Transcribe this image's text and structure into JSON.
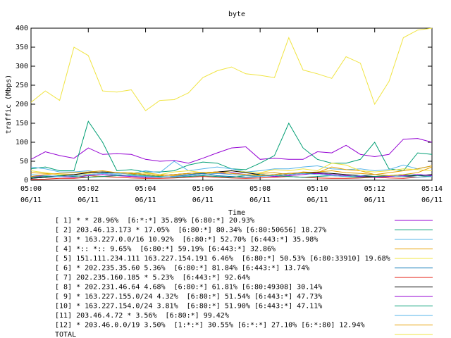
{
  "chart_data": {
    "type": "line",
    "title": "byte",
    "xlabel": "Time",
    "ylabel": "traffic (Mbps)",
    "x": [
      "05:00:00",
      "05:00:30",
      "05:01:00",
      "05:01:30",
      "05:02:00",
      "05:02:30",
      "05:03:00",
      "05:03:30",
      "05:04:00",
      "05:04:30",
      "05:05:00",
      "05:05:30",
      "05:06:00",
      "05:06:30",
      "05:07:00",
      "05:07:30",
      "05:08:00",
      "05:08:30",
      "05:09:00",
      "05:09:30",
      "05:10:00",
      "05:10:30",
      "05:11:00",
      "05:11:30",
      "05:12:00",
      "05:12:30",
      "05:13:00",
      "05:13:30",
      "05:14:00"
    ],
    "xlim": [
      "05:00:00",
      "05:14:00"
    ],
    "xticks": [
      {
        "value": "05:00:00",
        "label": "05:00",
        "date": "06/11"
      },
      {
        "value": "05:02:00",
        "label": "05:02",
        "date": "06/11"
      },
      {
        "value": "05:04:00",
        "label": "05:04",
        "date": "06/11"
      },
      {
        "value": "05:06:00",
        "label": "05:06",
        "date": "06/11"
      },
      {
        "value": "05:08:00",
        "label": "05:08",
        "date": "06/11"
      },
      {
        "value": "05:10:00",
        "label": "05:10",
        "date": "06/11"
      },
      {
        "value": "05:12:00",
        "label": "05:12",
        "date": "06/11"
      },
      {
        "value": "05:14:00",
        "label": "05:14",
        "date": "06/11"
      }
    ],
    "ylim": [
      0,
      400
    ],
    "yticks": [
      0,
      50,
      100,
      150,
      200,
      250,
      300,
      350,
      400
    ],
    "series": [
      {
        "name": "[ 1] * * 28.96%  [6:*:*] 35.89% [6:80:*] 20.93%",
        "color": "#9400d3",
        "values": [
          55,
          75,
          65,
          58,
          85,
          68,
          70,
          68,
          55,
          50,
          52,
          45,
          58,
          72,
          85,
          88,
          55,
          58,
          55,
          55,
          75,
          72,
          92,
          68,
          62,
          68,
          108,
          110,
          100
        ]
      },
      {
        "name": "[ 2] 203.46.13.173 * 17.05%  [6:80:*] 80.34% [6:80:50656] 18.27%",
        "color": "#009e73",
        "values": [
          30,
          35,
          25,
          25,
          155,
          100,
          25,
          28,
          22,
          22,
          25,
          40,
          48,
          45,
          30,
          28,
          45,
          65,
          150,
          85,
          55,
          45,
          45,
          55,
          100,
          30,
          25,
          72,
          68
        ]
      },
      {
        "name": "[ 3] * 163.227.0.0/16 10.92%  [6:80:*] 52.70% [6:443:*] 35.98%",
        "color": "#56b4e9",
        "values": [
          35,
          30,
          22,
          22,
          25,
          20,
          18,
          18,
          25,
          20,
          50,
          25,
          30,
          35,
          30,
          22,
          25,
          30,
          30,
          35,
          38,
          30,
          28,
          30,
          25,
          28,
          40,
          30,
          38
        ]
      },
      {
        "name": "[ 4] *:: *:: 9.65%  [6:80:*] 59.19% [6:443:*] 32.86%",
        "color": "#e69f00",
        "values": [
          20,
          18,
          15,
          15,
          12,
          10,
          12,
          15,
          20,
          15,
          12,
          15,
          18,
          20,
          15,
          12,
          18,
          20,
          15,
          22,
          20,
          35,
          28,
          25,
          15,
          20,
          25,
          30,
          38
        ]
      },
      {
        "name": "[ 5] 151.111.234.111 163.227.154.191 6.46%  [6:80:*] 50.53% [6:80:33910] 19.68%",
        "color": "#f0e442",
        "values": [
          25,
          20,
          15,
          15,
          18,
          22,
          20,
          20,
          18,
          15,
          22,
          25,
          20,
          18,
          25,
          22,
          20,
          28,
          25,
          30,
          25,
          45,
          40,
          25,
          22,
          25,
          30,
          28,
          25
        ]
      },
      {
        "name": "[ 6] * 202.235.35.60 5.36%  [6:80:*] 81.84% [6:443:*] 13.74%",
        "color": "#0072b2",
        "values": [
          5,
          8,
          10,
          12,
          15,
          18,
          15,
          12,
          10,
          8,
          10,
          15,
          18,
          12,
          10,
          8,
          10,
          15,
          18,
          20,
          18,
          15,
          12,
          10,
          8,
          10,
          12,
          15,
          12
        ]
      },
      {
        "name": "[ 7] 202.235.160.185 * 5.23%  [6:443:*] 92.64%",
        "color": "#e51e10",
        "values": [
          2,
          3,
          5,
          5,
          8,
          10,
          8,
          6,
          5,
          5,
          6,
          8,
          10,
          8,
          6,
          5,
          6,
          8,
          10,
          8,
          6,
          5,
          5,
          6,
          8,
          6,
          5,
          8,
          10
        ]
      },
      {
        "name": "[ 8] * 202.231.46.64 4.68%  [6:80:*] 61.81% [6:80:49308] 30.14%",
        "color": "#000000",
        "values": [
          5,
          8,
          12,
          15,
          20,
          22,
          20,
          18,
          15,
          12,
          15,
          18,
          20,
          22,
          25,
          20,
          15,
          12,
          15,
          18,
          20,
          18,
          15,
          12,
          10,
          12,
          10,
          12,
          15
        ]
      },
      {
        "name": "[ 9] * 163.227.155.0/24 4.32%  [6:80:*] 51.54% [6:443:*] 47.73%",
        "color": "#9400d3",
        "values": [
          10,
          12,
          10,
          8,
          12,
          15,
          12,
          10,
          8,
          8,
          10,
          12,
          15,
          18,
          20,
          15,
          12,
          10,
          12,
          15,
          18,
          15,
          12,
          10,
          8,
          10,
          12,
          15,
          12
        ]
      },
      {
        "name": "[10] * 163.227.154.0/24 3.81%  [6:80:*] 51.90% [6:443:*] 47.11%",
        "color": "#009e73",
        "values": [
          8,
          10,
          12,
          10,
          8,
          10,
          12,
          15,
          12,
          10,
          8,
          10,
          12,
          10,
          8,
          12,
          15,
          12,
          10,
          8,
          10,
          12,
          10,
          8,
          10,
          12,
          15,
          12,
          10
        ]
      },
      {
        "name": "[11] 203.46.4.72 * 3.56%  [6:80:*] 99.42%",
        "color": "#56b4e9",
        "values": [
          15,
          12,
          10,
          12,
          15,
          18,
          15,
          12,
          10,
          8,
          10,
          12,
          15,
          18,
          15,
          12,
          10,
          12,
          15,
          18,
          15,
          12,
          10,
          12,
          15,
          12,
          10,
          8,
          10
        ]
      },
      {
        "name": "[12] * 203.46.0.0/19 3.50%  [1:*:*] 30.55% [6:*:*] 27.10% [6:*:80] 12.94%",
        "color": "#e69f00",
        "values": [
          10,
          15,
          18,
          20,
          22,
          25,
          20,
          18,
          15,
          12,
          15,
          18,
          20,
          22,
          18,
          15,
          12,
          15,
          18,
          20,
          22,
          25,
          20,
          18,
          15,
          12,
          15,
          20,
          35
        ]
      },
      {
        "name": "TOTAL",
        "color": "#f0e442",
        "values": [
          205,
          235,
          210,
          350,
          328,
          235,
          232,
          238,
          183,
          210,
          212,
          230,
          270,
          288,
          298,
          280,
          276,
          270,
          375,
          290,
          280,
          268,
          325,
          308,
          200,
          260,
          375,
          395,
          400
        ]
      }
    ]
  }
}
